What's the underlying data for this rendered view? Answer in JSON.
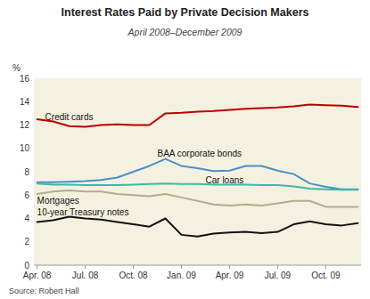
{
  "chart_data": {
    "type": "line",
    "title": "Interest Rates Paid by Private Decision Makers",
    "subtitle": "April 2008–December 2009",
    "source": "Source: Robert Hall",
    "y_label": "%",
    "categories": [
      "Apr. 08",
      null,
      null,
      "Jul. 08",
      null,
      null,
      "Oct. 08",
      null,
      null,
      "Jan. 09",
      null,
      null,
      "Apr. 09",
      null,
      null,
      "Jul. 09",
      null,
      null,
      "Oct. 09",
      null,
      null
    ],
    "series": [
      {
        "name": "Credit cards",
        "color": "#bb0000",
        "values": [
          12.5,
          12.3,
          11.9,
          11.85,
          12.0,
          12.05,
          12.0,
          12.0,
          13.0,
          13.05,
          13.15,
          13.2,
          13.3,
          13.4,
          13.45,
          13.5,
          13.6,
          13.75,
          13.7,
          13.65,
          13.55
        ]
      },
      {
        "name": "BAA corporate bonds",
        "color": "#4a90c8",
        "values": [
          7.1,
          7.1,
          7.15,
          7.2,
          7.3,
          7.5,
          8.0,
          8.5,
          9.1,
          8.5,
          8.3,
          8.05,
          8.1,
          8.5,
          8.5,
          8.1,
          7.8,
          7.0,
          6.7,
          6.5,
          6.5
        ]
      },
      {
        "name": "Car loans",
        "color": "#3abba8",
        "values": [
          7.0,
          6.9,
          6.9,
          6.85,
          6.85,
          6.85,
          6.9,
          6.95,
          7.0,
          6.95,
          6.95,
          6.9,
          6.9,
          6.9,
          6.85,
          6.85,
          6.75,
          6.55,
          6.5,
          6.45,
          6.45
        ]
      },
      {
        "name": "Mortgages",
        "color": "#b0ae8a",
        "values": [
          6.1,
          6.3,
          6.4,
          6.3,
          6.3,
          6.1,
          6.0,
          5.9,
          6.1,
          5.8,
          5.5,
          5.2,
          5.1,
          5.2,
          5.1,
          5.3,
          5.5,
          5.5,
          5.0,
          5.0,
          5.0
        ]
      },
      {
        "name": "10-year Treasury notes",
        "color": "#111111",
        "values": [
          3.7,
          3.85,
          4.15,
          4.0,
          3.9,
          3.7,
          3.5,
          3.3,
          4.0,
          2.6,
          2.45,
          2.7,
          2.8,
          2.85,
          2.75,
          2.85,
          3.5,
          3.75,
          3.5,
          3.4,
          3.6
        ]
      }
    ],
    "ylim": [
      0,
      16
    ],
    "yticks": [
      0,
      2,
      4,
      6,
      8,
      10,
      12,
      14,
      16
    ],
    "grid": false,
    "annotations": [
      {
        "text": "Credit cards",
        "x": 0.5,
        "y": 12.65
      },
      {
        "text": "BAA corporate bonds",
        "x": 7.5,
        "y": 9.6
      },
      {
        "text": "Car loans",
        "x": 10.5,
        "y": 7.25
      },
      {
        "text": "Mortgages",
        "x": 0.0,
        "y": 5.55
      },
      {
        "text": "10-year Treasury notes",
        "x": 0.0,
        "y": 4.5
      }
    ]
  }
}
